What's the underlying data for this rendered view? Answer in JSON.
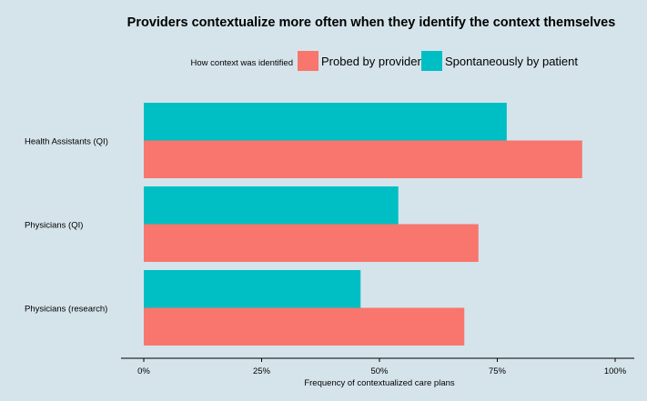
{
  "chart_data": {
    "type": "bar",
    "orientation": "horizontal",
    "title": "Providers contextualize more often when they identify the context themselves",
    "xlabel": "Frequency of contextualized care plans",
    "ylabel": "",
    "xlim": [
      0,
      1
    ],
    "x_ticks": [
      0,
      0.25,
      0.5,
      0.75,
      1.0
    ],
    "x_tick_labels": [
      "0%",
      "25%",
      "50%",
      "75%",
      "100%"
    ],
    "grid": false,
    "legend": {
      "title": "How context was identified",
      "placement": "top",
      "entries": [
        "Probed by provider",
        "Spontaneously by patient"
      ]
    },
    "categories": [
      "Health Assistants (QI)",
      "Physicians (QI)",
      "Physicians (research)"
    ],
    "series": [
      {
        "name": "Probed by provider",
        "color": "#f8766d",
        "values": [
          0.93,
          0.71,
          0.68
        ]
      },
      {
        "name": "Spontaneously by patient",
        "color": "#00bfc4",
        "values": [
          0.77,
          0.54,
          0.46
        ]
      }
    ]
  }
}
